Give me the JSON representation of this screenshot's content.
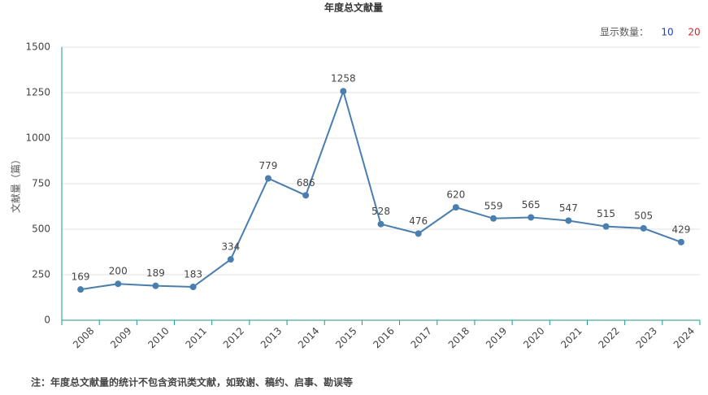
{
  "chart_data": {
    "type": "line",
    "title": "年度总文献量",
    "y_label": "文献量（篇）",
    "display_count_label": "显示数量：",
    "display_count_options": [
      10,
      20
    ],
    "display_count_colors": [
      "#1f3fbf",
      "#d0262b"
    ],
    "categories": [
      "2008",
      "2009",
      "2010",
      "2011",
      "2012",
      "2013",
      "2014",
      "2015",
      "2016",
      "2017",
      "2018",
      "2019",
      "2020",
      "2021",
      "2022",
      "2023",
      "2024"
    ],
    "values": [
      169,
      200,
      189,
      183,
      334,
      779,
      686,
      1258,
      528,
      476,
      620,
      559,
      565,
      547,
      515,
      505,
      429
    ],
    "color": "#4a7eae",
    "ylim": [
      0,
      1500
    ],
    "yticks": [
      0,
      250,
      500,
      750,
      1000,
      1250,
      1500
    ],
    "grid": true,
    "note": "注：年度总文献量的统计不包含资讯类文献，如致谢、稿约、启事、勘误等"
  }
}
